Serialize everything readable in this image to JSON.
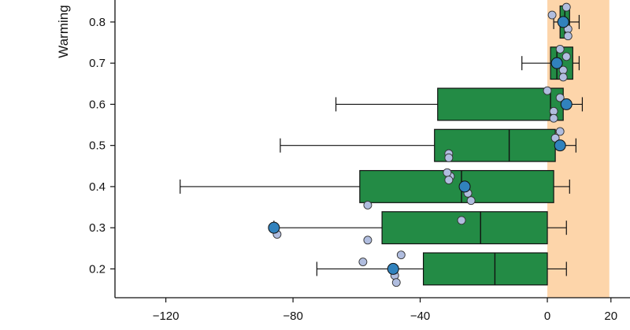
{
  "chart_data": {
    "type": "box",
    "orientation": "horizontal",
    "ylabel": "Warming",
    "xlim": [
      -136,
      26
    ],
    "ylim": [
      0.13,
      0.93
    ],
    "x_ticks": [
      -120,
      -80,
      -40,
      0,
      20
    ],
    "x_tick_labels": [
      "−120",
      "−80",
      "−40",
      "0",
      "20"
    ],
    "y_ticks": [
      0.2,
      0.3,
      0.4,
      0.5,
      0.6,
      0.7,
      0.8
    ],
    "y_tick_labels": [
      "0.2",
      "0.3",
      "0.4",
      "0.5",
      "0.6",
      "0.7",
      "0.8"
    ],
    "shaded_region": {
      "x": [
        0,
        19.5
      ],
      "color": "#fdd5aa"
    },
    "box_color": "#238b45",
    "point_color": "#b0bddf",
    "highlight_color": "#3182bd",
    "boxes": [
      {
        "y": 0.2,
        "whisker_low": -72.5,
        "q1": -39,
        "median": -16.5,
        "q3": 0,
        "whisker_high": 6
      },
      {
        "y": 0.3,
        "whisker_low": -86,
        "q1": -52,
        "median": -21,
        "q3": 0,
        "whisker_high": 6
      },
      {
        "y": 0.4,
        "whisker_low": -115.5,
        "q1": -59,
        "median": -27,
        "q3": 2,
        "whisker_high": 7
      },
      {
        "y": 0.5,
        "whisker_low": -84,
        "q1": -35.5,
        "median": -12,
        "q3": 2.5,
        "whisker_high": 9
      },
      {
        "y": 0.6,
        "whisker_low": -66.5,
        "q1": -34.5,
        "median": 1,
        "q3": 5,
        "whisker_high": 11
      },
      {
        "y": 0.7,
        "whisker_low": -8,
        "q1": 1,
        "median": 3,
        "q3": 8,
        "whisker_high": 10
      },
      {
        "y": 0.8,
        "whisker_low": 2,
        "q1": 4,
        "median": 5.5,
        "q3": 7,
        "whisker_high": 10
      }
    ],
    "points": [
      {
        "x": -48.5,
        "y": 0.2
      },
      {
        "x": -58,
        "y": 0.217
      },
      {
        "x": -46,
        "y": 0.234
      },
      {
        "x": -48,
        "y": 0.184
      },
      {
        "x": -47.5,
        "y": 0.167
      },
      {
        "x": -85,
        "y": 0.284
      },
      {
        "x": -56.5,
        "y": 0.355
      },
      {
        "x": -56.5,
        "y": 0.27
      },
      {
        "x": -27,
        "y": 0.318
      },
      {
        "x": -30.5,
        "y": 0.425
      },
      {
        "x": -31.5,
        "y": 0.434
      },
      {
        "x": -31,
        "y": 0.416
      },
      {
        "x": -25,
        "y": 0.384
      },
      {
        "x": -24,
        "y": 0.366
      },
      {
        "x": -31,
        "y": 0.48
      },
      {
        "x": -31,
        "y": 0.47
      },
      {
        "x": 4,
        "y": 0.534
      },
      {
        "x": 2.5,
        "y": 0.518
      },
      {
        "x": 0,
        "y": 0.633
      },
      {
        "x": 4,
        "y": 0.616
      },
      {
        "x": 2,
        "y": 0.583
      },
      {
        "x": 2,
        "y": 0.566
      },
      {
        "x": 4,
        "y": 0.734
      },
      {
        "x": 6,
        "y": 0.716
      },
      {
        "x": 5,
        "y": 0.683
      },
      {
        "x": 5,
        "y": 0.666
      },
      {
        "x": 1.5,
        "y": 0.817
      },
      {
        "x": 6.5,
        "y": 0.783
      },
      {
        "x": 6.5,
        "y": 0.766
      },
      {
        "x": 6,
        "y": 0.836
      }
    ],
    "highlights": [
      {
        "x": -48.5,
        "y": 0.2
      },
      {
        "x": -86,
        "y": 0.3
      },
      {
        "x": -26,
        "y": 0.4
      },
      {
        "x": 4,
        "y": 0.5
      },
      {
        "x": 6,
        "y": 0.6
      },
      {
        "x": 3,
        "y": 0.7
      },
      {
        "x": 5,
        "y": 0.8
      }
    ]
  }
}
